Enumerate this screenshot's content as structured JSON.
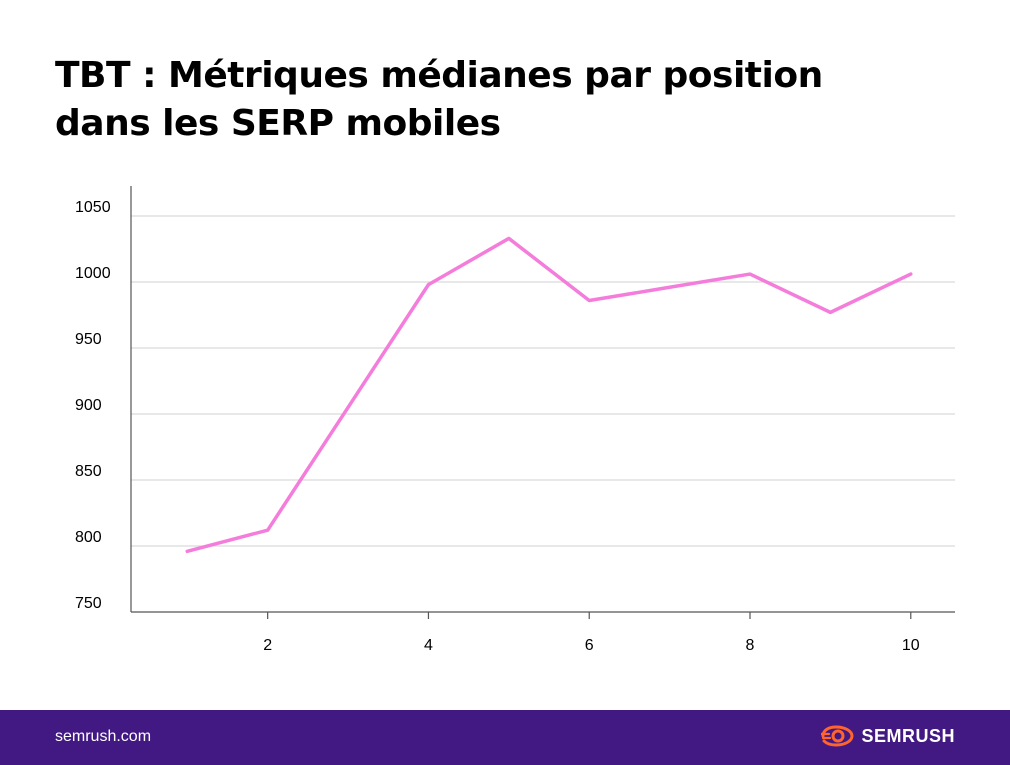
{
  "title_lines": [
    "TBT : Métriques médianes par position",
    "dans les SERP mobiles"
  ],
  "footer": {
    "domain": "semrush.com",
    "brand": "SEMRUSH"
  },
  "colors": {
    "line": "#f47ddb",
    "footer_bg": "#421983",
    "grid": "#d9d9d9",
    "brand_accent": "#ff642d"
  },
  "chart_data": {
    "type": "line",
    "title": "TBT : Métriques médianes par position dans les SERP mobiles",
    "xlabel": "",
    "ylabel": "",
    "x": [
      1,
      2,
      3,
      4,
      5,
      6,
      7,
      8,
      9,
      10
    ],
    "x_ticks": [
      2,
      4,
      6,
      8,
      10
    ],
    "xlim": [
      0.3,
      10.55
    ],
    "y_ticks": [
      750,
      800,
      850,
      900,
      950,
      1000,
      1050
    ],
    "ylim": [
      750,
      1050
    ],
    "grid": true,
    "series": [
      {
        "values": [
          796,
          812,
          905,
          998,
          1033,
          986,
          996,
          1006,
          977,
          1006
        ]
      }
    ]
  }
}
